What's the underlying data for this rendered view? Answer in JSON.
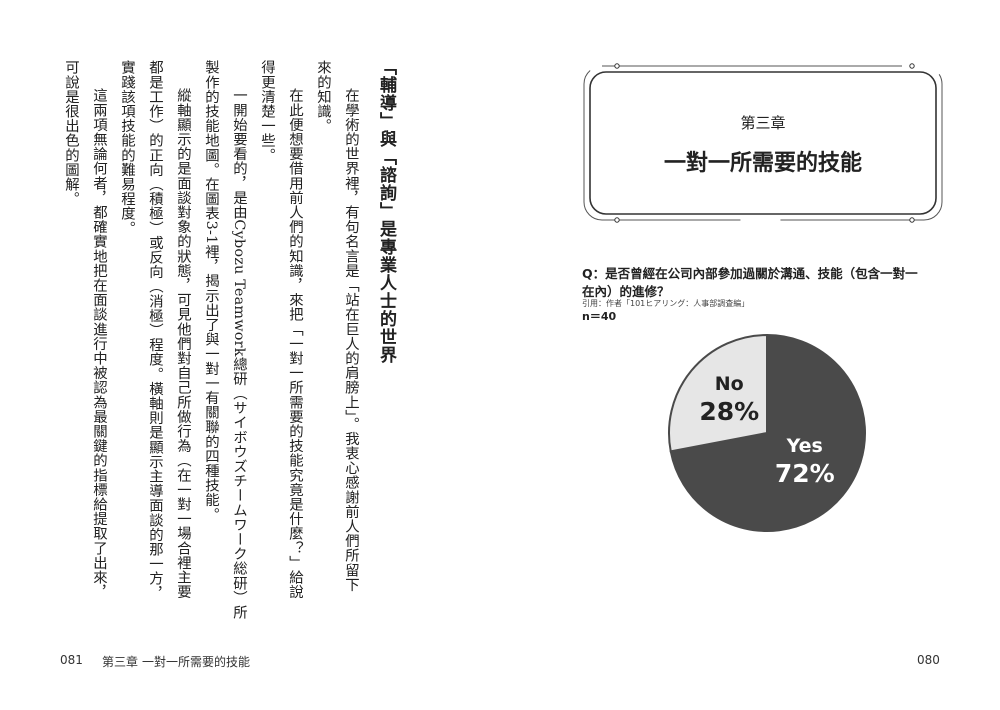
{
  "left_page": {
    "heading": "「輔導」與「諮詢」是專業人士的世界",
    "lines": [
      "在學術的世界裡，有句名言是「站在巨人的肩膀上」。我衷心感謝前人們所留下",
      "來的知識。",
      "在此便想要借用前人們的知識，來把「一對一所需要的技能究竟是什麼？」給說",
      "得更清楚一些。",
      "一開始要看的，是由Cybozu Teamwork總研（サイボウズチームワーク総研）所",
      "製作的技能地圖。在圖表3-1裡，揭示出了與一對一有關聯的四種技能。",
      "縱軸顯示的是面談對象的狀態，可見他們對自己所做行為（在一對一場合裡主要",
      "都是工作）的正向（積極）或反向（消極）程度。橫軸則是顯示主導面談的那一方，",
      "實踐該項技能的難易程度。",
      "這兩項無論何者，都確實地把在面談進行中被認為最關鍵的指標給提取了出來，",
      "可說是很出色的圖解。"
    ],
    "page_number": "081",
    "running_chapter": "第三章",
    "running_title": "一對一所需要的技能"
  },
  "right_page": {
    "chapter": "第三章",
    "chapter_title": "一對一所需要的技能",
    "question": "Q：是否曾經在公司內部參加過關於溝通、技能（包含一對一在內）的進修？",
    "source": "引用：作者「101ヒアリング：人事部調査編」",
    "sample": "n＝40",
    "page_number": "080"
  },
  "chart_data": {
    "type": "pie",
    "categories": [
      "Yes",
      "No"
    ],
    "values": [
      72,
      28
    ],
    "value_labels": [
      "72%",
      "28%"
    ],
    "colors": [
      "#4a4a4a",
      "#e6e6e6"
    ],
    "label_colors": [
      "#ffffff",
      "#222222"
    ]
  }
}
